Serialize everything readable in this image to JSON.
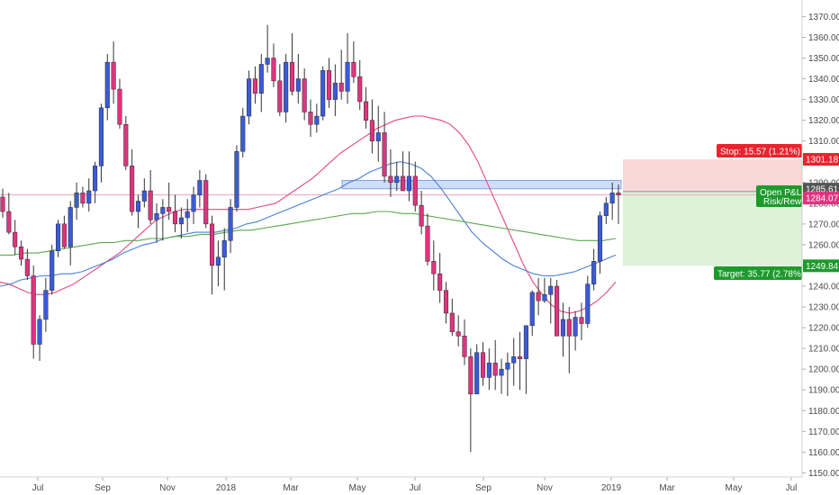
{
  "chart_data": {
    "type": "candlestick",
    "y_range": [
      1148,
      1378
    ],
    "y_ticks": [
      "1150.00",
      "1160.00",
      "1170.00",
      "1180.00",
      "1190.00",
      "1200.00",
      "1210.00",
      "1220.00",
      "1230.00",
      "1240.00",
      "1250.00",
      "1260.00",
      "1270.00",
      "1280.00",
      "1290.00",
      "1300.00",
      "1310.00",
      "1320.00",
      "1330.00",
      "1340.00",
      "1350.00",
      "1360.00",
      "1370.00"
    ],
    "x_labels": [
      "Jul",
      "Sep",
      "Nov",
      "2018",
      "Mar",
      "May",
      "Jul",
      "Sep",
      "Nov",
      "2019",
      "Mar",
      "May",
      "Jul"
    ],
    "candles": [
      [
        1283,
        1287,
        1273,
        1276
      ],
      [
        1276,
        1285,
        1265,
        1266
      ],
      [
        1266,
        1272,
        1255,
        1259
      ],
      [
        1259,
        1262,
        1250,
        1253
      ],
      [
        1253,
        1258,
        1243,
        1245
      ],
      [
        1245,
        1250,
        1205,
        1212
      ],
      [
        1212,
        1226,
        1204,
        1224
      ],
      [
        1224,
        1244,
        1218,
        1238
      ],
      [
        1238,
        1260,
        1236,
        1257
      ],
      [
        1257,
        1272,
        1254,
        1270
      ],
      [
        1270,
        1274,
        1258,
        1259
      ],
      [
        1259,
        1281,
        1250,
        1278
      ],
      [
        1278,
        1290,
        1272,
        1285
      ],
      [
        1285,
        1288,
        1278,
        1280
      ],
      [
        1280,
        1292,
        1276,
        1286
      ],
      [
        1286,
        1300,
        1280,
        1298
      ],
      [
        1298,
        1328,
        1290,
        1326
      ],
      [
        1326,
        1352,
        1320,
        1348
      ],
      [
        1348,
        1358,
        1328,
        1335
      ],
      [
        1335,
        1340,
        1316,
        1318
      ],
      [
        1318,
        1322,
        1296,
        1298
      ],
      [
        1298,
        1306,
        1274,
        1276
      ],
      [
        1276,
        1284,
        1268,
        1281
      ],
      [
        1281,
        1292,
        1278,
        1286
      ],
      [
        1286,
        1296,
        1270,
        1272
      ],
      [
        1272,
        1280,
        1261,
        1275
      ],
      [
        1275,
        1282,
        1262,
        1278
      ],
      [
        1278,
        1290,
        1272,
        1276
      ],
      [
        1276,
        1284,
        1266,
        1270
      ],
      [
        1270,
        1278,
        1263,
        1273
      ],
      [
        1273,
        1282,
        1266,
        1276
      ],
      [
        1276,
        1288,
        1270,
        1284
      ],
      [
        1284,
        1296,
        1278,
        1291
      ],
      [
        1291,
        1294,
        1268,
        1270
      ],
      [
        1270,
        1274,
        1236,
        1250
      ],
      [
        1250,
        1262,
        1240,
        1254
      ],
      [
        1254,
        1268,
        1238,
        1262
      ],
      [
        1262,
        1282,
        1256,
        1278
      ],
      [
        1278,
        1308,
        1276,
        1305
      ],
      [
        1305,
        1326,
        1302,
        1322
      ],
      [
        1322,
        1344,
        1318,
        1340
      ],
      [
        1340,
        1346,
        1328,
        1333
      ],
      [
        1333,
        1352,
        1324,
        1347
      ],
      [
        1347,
        1366,
        1343,
        1350
      ],
      [
        1350,
        1357,
        1336,
        1339
      ],
      [
        1339,
        1347,
        1322,
        1324
      ],
      [
        1324,
        1352,
        1319,
        1348
      ],
      [
        1348,
        1362,
        1332,
        1334
      ],
      [
        1334,
        1352,
        1328,
        1340
      ],
      [
        1340,
        1345,
        1320,
        1324
      ],
      [
        1324,
        1330,
        1312,
        1318
      ],
      [
        1318,
        1328,
        1314,
        1322
      ],
      [
        1322,
        1346,
        1320,
        1344
      ],
      [
        1344,
        1350,
        1326,
        1330
      ],
      [
        1330,
        1347,
        1322,
        1338
      ],
      [
        1338,
        1354,
        1330,
        1334
      ],
      [
        1334,
        1362,
        1328,
        1348
      ],
      [
        1348,
        1358,
        1338,
        1341
      ],
      [
        1341,
        1349,
        1325,
        1329
      ],
      [
        1329,
        1336,
        1316,
        1320
      ],
      [
        1320,
        1330,
        1304,
        1310
      ],
      [
        1310,
        1327,
        1300,
        1314
      ],
      [
        1314,
        1324,
        1290,
        1293
      ],
      [
        1293,
        1306,
        1283,
        1290
      ],
      [
        1290,
        1300,
        1286,
        1293
      ],
      [
        1293,
        1305,
        1288,
        1286
      ],
      [
        1286,
        1305,
        1281,
        1293
      ],
      [
        1293,
        1300,
        1276,
        1279
      ],
      [
        1279,
        1286,
        1265,
        1269
      ],
      [
        1269,
        1275,
        1250,
        1252
      ],
      [
        1252,
        1262,
        1238,
        1246
      ],
      [
        1246,
        1256,
        1232,
        1238
      ],
      [
        1238,
        1242,
        1222,
        1227
      ],
      [
        1227,
        1234,
        1216,
        1218
      ],
      [
        1218,
        1226,
        1211,
        1216
      ],
      [
        1216,
        1224,
        1202,
        1206
      ],
      [
        1206,
        1210,
        1160,
        1188
      ],
      [
        1188,
        1212,
        1188,
        1208
      ],
      [
        1208,
        1213,
        1192,
        1196
      ],
      [
        1196,
        1210,
        1190,
        1203
      ],
      [
        1203,
        1214,
        1190,
        1197
      ],
      [
        1197,
        1205,
        1188,
        1200
      ],
      [
        1200,
        1208,
        1187,
        1203
      ],
      [
        1203,
        1215,
        1192,
        1206
      ],
      [
        1206,
        1218,
        1190,
        1205
      ],
      [
        1205,
        1221,
        1188,
        1221
      ],
      [
        1221,
        1238,
        1216,
        1237
      ],
      [
        1237,
        1244,
        1226,
        1233
      ],
      [
        1233,
        1244,
        1232,
        1236
      ],
      [
        1236,
        1244,
        1222,
        1240
      ],
      [
        1240,
        1243,
        1216,
        1216
      ],
      [
        1216,
        1232,
        1206,
        1224
      ],
      [
        1224,
        1230,
        1198,
        1216
      ],
      [
        1216,
        1228,
        1209,
        1225
      ],
      [
        1225,
        1232,
        1214,
        1222
      ],
      [
        1222,
        1245,
        1220,
        1241
      ],
      [
        1241,
        1258,
        1238,
        1252
      ],
      [
        1252,
        1276,
        1246,
        1274
      ],
      [
        1274,
        1283,
        1270,
        1280
      ],
      [
        1280,
        1290,
        1272,
        1285
      ],
      [
        1285,
        1289,
        1270,
        1284
      ]
    ],
    "series": [
      {
        "values": [
          1242,
          1241,
          1239,
          1237,
          1236,
          1236,
          1237,
          1239,
          1241,
          1244,
          1247,
          1250,
          1253,
          1256,
          1260,
          1264,
          1268,
          1272,
          1274,
          1276,
          1277,
          1277,
          1277,
          1277,
          1277,
          1277,
          1277,
          1277,
          1278,
          1279,
          1280,
          1283,
          1286,
          1289,
          1292,
          1296,
          1300,
          1304,
          1307,
          1310,
          1313,
          1316,
          1318,
          1320,
          1321,
          1322,
          1322,
          1321,
          1320,
          1318,
          1314,
          1308,
          1300,
          1290,
          1280,
          1270,
          1260,
          1250,
          1242,
          1236,
          1231,
          1228,
          1227,
          1228,
          1230,
          1233,
          1237,
          1242
        ]
      },
      {
        "values": [
          1240,
          1241,
          1243,
          1244,
          1245,
          1245,
          1246,
          1246,
          1247,
          1249,
          1251,
          1253,
          1256,
          1258,
          1260,
          1261,
          1263,
          1264,
          1265,
          1266,
          1266,
          1266,
          1267,
          1268,
          1270,
          1271,
          1273,
          1275,
          1277,
          1279,
          1281,
          1283,
          1285,
          1287,
          1290,
          1292,
          1295,
          1297,
          1299,
          1300,
          1299,
          1297,
          1293,
          1287,
          1280,
          1273,
          1266,
          1261,
          1257,
          1253,
          1250,
          1248,
          1246,
          1245,
          1245,
          1246,
          1247,
          1249,
          1251,
          1253,
          1255
        ]
      },
      {
        "values": [
          1255,
          1255,
          1256,
          1256,
          1257,
          1258,
          1259,
          1260,
          1261,
          1261,
          1262,
          1262,
          1263,
          1263,
          1264,
          1264,
          1265,
          1265,
          1266,
          1267,
          1267,
          1268,
          1269,
          1270,
          1271,
          1272,
          1273,
          1274,
          1275,
          1275,
          1276,
          1276,
          1275,
          1275,
          1274,
          1273,
          1272,
          1271,
          1270,
          1269,
          1268,
          1267,
          1266,
          1265,
          1264,
          1263,
          1262,
          1262,
          1262,
          1263
        ]
      }
    ],
    "zone": {
      "top": 1291,
      "bottom": 1287
    },
    "reference_line": 1284.07,
    "stop_level": 1301.18,
    "target_level": 1249.84,
    "entry_level": 1285.61,
    "stop_label": "Stop: 15.57 (1.21%)",
    "target_label": "Target: 35.77 (2.78%)",
    "open_pl_label": "Open P&L:",
    "risk_label": "Risk/Rewa",
    "price_tags": {
      "stop": "1301.18",
      "entry": "1285.61",
      "current": "1284.07",
      "target": "1249.84"
    }
  },
  "colors": {
    "up": "#3a5bd9",
    "down": "#e0337f",
    "wick": "#333333",
    "ma_fast": "#e8457d",
    "ma_mid": "#4a7fd6",
    "ma_slow": "#5aa84e",
    "zone_fill": "#c7d8f7",
    "zone_stroke": "#6a93e0",
    "stop_fill": "#f8c9c9",
    "target_fill": "#d4efd0",
    "stop_tag": "#e8242e",
    "target_tag": "#1d9a2c",
    "entry_tag": "#555555",
    "current_tag": "#e0337f",
    "ref_line": "#f2a6bf"
  }
}
